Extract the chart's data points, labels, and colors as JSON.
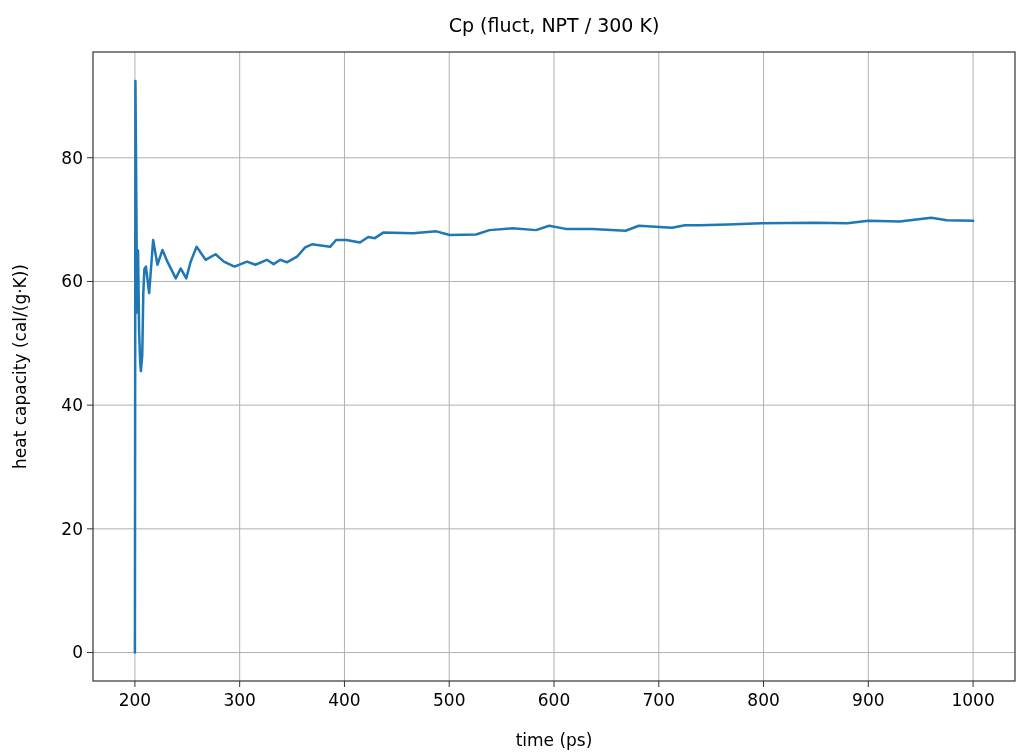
{
  "chart_data": {
    "type": "line",
    "title": "Cp (fluct, NPT / 300 K)",
    "xlabel": "time (ps)",
    "ylabel": "heat capacity (cal/(g·K))",
    "xlim": [
      160,
      1040
    ],
    "ylim": [
      -4.6,
      97.1
    ],
    "xticks": [
      200,
      300,
      400,
      500,
      600,
      700,
      800,
      900,
      1000
    ],
    "yticks": [
      0,
      20,
      40,
      60,
      80
    ],
    "grid": true,
    "series": [
      {
        "color": "#1f77b4",
        "x": [
          200,
          200.5,
          201.5,
          202,
          203,
          204,
          205,
          205.7,
          207,
          208,
          209,
          210.5,
          213.6,
          217.4,
          221.5,
          226.3,
          231,
          239,
          243.7,
          249,
          253.2,
          258.9,
          267.5,
          277,
          284.9,
          295,
          307,
          315,
          326,
          332.4,
          338.8,
          345,
          354.7,
          362.5,
          369,
          386.3,
          392,
          402,
          414.8,
          422.7,
          429,
          437,
          465.5,
          487.7,
          500.4,
          525.6,
          538.4,
          560.5,
          582.8,
          595.4,
          611.2,
          636.5,
          668.3,
          681,
          712.6,
          725,
          739,
          766,
          798,
          850,
          880,
          900,
          930,
          960,
          975,
          1000
        ],
        "values": [
          0,
          92.4,
          70,
          55,
          65,
          52,
          47,
          45.5,
          48,
          58,
          62,
          62.4,
          58.1,
          66.7,
          62.7,
          65.1,
          63.2,
          60.5,
          62.1,
          60.5,
          63.2,
          65.6,
          63.5,
          64.4,
          63.2,
          62.4,
          63.2,
          62.7,
          63.5,
          62.8,
          63.5,
          63.1,
          64,
          65.5,
          66,
          65.6,
          66.7,
          66.7,
          66.3,
          67.2,
          67,
          67.9,
          67.8,
          68.1,
          67.5,
          67.6,
          68.3,
          68.6,
          68.3,
          69,
          68.5,
          68.5,
          68.2,
          69,
          68.7,
          69.1,
          69.1,
          69.2,
          69.4,
          69.5,
          69.4,
          69.8,
          69.7,
          70.3,
          69.9,
          69.8
        ]
      }
    ]
  }
}
